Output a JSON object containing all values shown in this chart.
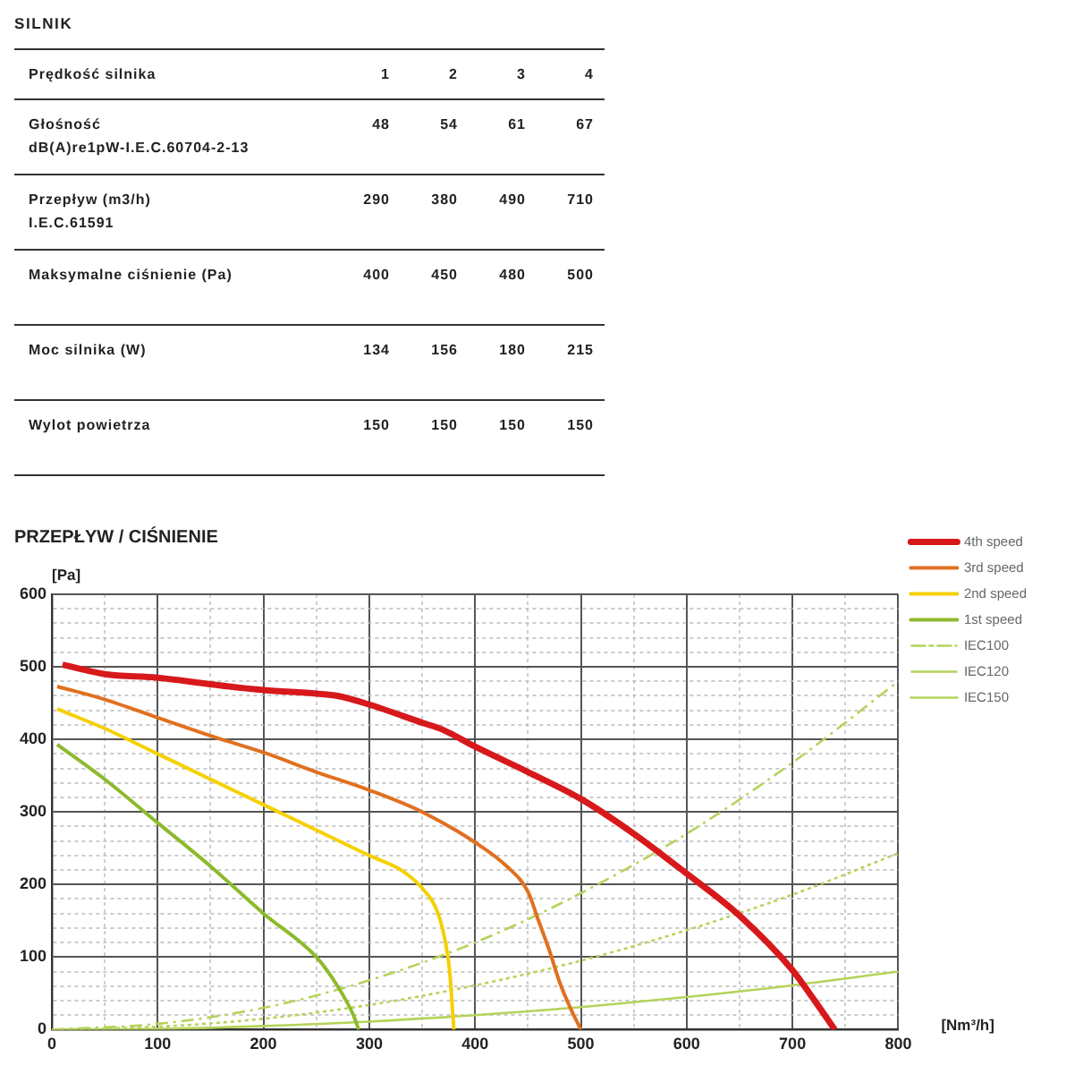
{
  "chart_data": [
    {
      "type": "heatmap",
      "title": "SILNIK",
      "xlabel": "Prędkość silnika",
      "categories": [
        "1",
        "2",
        "3",
        "4"
      ],
      "y_categories": [
        "Głośność\ndB(A)re1pW-I.E.C.60704-2-13",
        "Przepływ (m3/h)\nI.E.C.61591",
        "Maksymalne ciśnienie (Pa)",
        "Moc silnika (W)",
        "Wylot powietrza"
      ],
      "cells": [
        [
          48,
          54,
          61,
          67
        ],
        [
          290,
          380,
          490,
          710
        ],
        [
          400,
          450,
          480,
          500
        ],
        [
          134,
          156,
          180,
          215
        ],
        [
          150,
          150,
          150,
          150
        ]
      ],
      "data_labels": true
    },
    {
      "type": "line",
      "title": "PRZEPŁYW / CIŚNIENIE",
      "xlabel": "[Nm³/h]",
      "ylabel": "[Pa]",
      "xlim": [
        0,
        800
      ],
      "xticks": [
        0,
        {
          "value": 50,
          "label": null
        },
        100,
        {
          "value": 150,
          "label": null
        },
        200,
        {
          "value": 250,
          "label": null
        },
        300,
        {
          "value": 350,
          "label": null
        },
        400,
        {
          "value": 450,
          "label": null
        },
        500,
        {
          "value": 550,
          "label": null
        },
        600,
        {
          "value": 650,
          "label": null
        },
        700,
        {
          "value": 750,
          "label": null
        },
        800
      ],
      "ylim": [
        0,
        600
      ],
      "yticks": [
        0,
        {
          "value": 20,
          "label": null
        },
        {
          "value": 40,
          "label": null
        },
        {
          "value": 60,
          "label": null
        },
        {
          "value": 80,
          "label": null
        },
        100,
        {
          "value": 120,
          "label": null
        },
        {
          "value": 140,
          "label": null
        },
        {
          "value": 160,
          "label": null
        },
        {
          "value": 180,
          "label": null
        },
        200,
        {
          "value": 220,
          "label": null
        },
        {
          "value": 240,
          "label": null
        },
        {
          "value": 260,
          "label": null
        },
        {
          "value": 280,
          "label": null
        },
        300,
        {
          "value": 320,
          "label": null
        },
        {
          "value": 340,
          "label": null
        },
        {
          "value": 360,
          "label": null
        },
        {
          "value": 380,
          "label": null
        },
        400,
        {
          "value": 420,
          "label": null
        },
        {
          "value": 440,
          "label": null
        },
        {
          "value": 460,
          "label": null
        },
        {
          "value": 480,
          "label": null
        },
        500,
        {
          "value": 520,
          "label": null
        },
        {
          "value": 540,
          "label": null
        },
        {
          "value": 560,
          "label": null
        },
        {
          "value": 580,
          "label": null
        },
        600
      ],
      "grid": true,
      "legend": "right",
      "series": [
        {
          "name": "4th speed",
          "color": "#d7191c",
          "line_style": "solid",
          "x": [
            10,
            50,
            100,
            150,
            200,
            250,
            270,
            300,
            350,
            370,
            400,
            450,
            500,
            550,
            600,
            650,
            700,
            720,
            740
          ],
          "values": [
            503,
            490,
            485,
            476,
            468,
            463,
            460,
            448,
            423,
            413,
            390,
            355,
            318,
            270,
            215,
            157,
            82,
            42,
            0
          ]
        },
        {
          "name": "3rd speed",
          "color": "#e07020",
          "line_style": "solid",
          "x": [
            5,
            50,
            100,
            150,
            200,
            250,
            300,
            350,
            400,
            430,
            450,
            460,
            470,
            480,
            490,
            500
          ],
          "values": [
            473,
            455,
            430,
            405,
            382,
            355,
            330,
            300,
            258,
            225,
            190,
            150,
            110,
            65,
            30,
            0
          ]
        },
        {
          "name": "2nd speed",
          "color": "#f5d000",
          "line_style": "solid",
          "x": [
            5,
            50,
            100,
            150,
            200,
            250,
            300,
            330,
            350,
            365,
            372,
            376,
            378,
            380
          ],
          "values": [
            442,
            415,
            380,
            345,
            310,
            275,
            240,
            220,
            195,
            160,
            120,
            80,
            40,
            0
          ]
        },
        {
          "name": "1st speed",
          "color": "#8dba2c",
          "line_style": "solid",
          "x": [
            5,
            50,
            100,
            150,
            200,
            250,
            270,
            285,
            290
          ],
          "values": [
            393,
            345,
            285,
            225,
            160,
            100,
            60,
            20,
            0
          ]
        },
        {
          "name": "IEC100",
          "color": "#b5d35a",
          "line_style": "dashed",
          "x": [
            0,
            100,
            200,
            300,
            400,
            500,
            600,
            700,
            800
          ],
          "values": [
            0,
            8,
            30,
            68,
            120,
            188,
            270,
            368,
            480
          ]
        },
        {
          "name": "IEC120",
          "color": "#b5d35a",
          "line_style": "dotted",
          "x": [
            0,
            100,
            200,
            300,
            400,
            500,
            600,
            700,
            800
          ],
          "values": [
            0,
            4,
            15,
            34,
            61,
            95,
            137,
            186,
            243
          ]
        },
        {
          "name": "IEC150",
          "color": "#b5d35a",
          "line_style": "solid",
          "x": [
            0,
            100,
            200,
            300,
            400,
            500,
            600,
            700,
            800
          ],
          "values": [
            0,
            1,
            5,
            11,
            20,
            31,
            45,
            61,
            80
          ]
        }
      ]
    }
  ]
}
